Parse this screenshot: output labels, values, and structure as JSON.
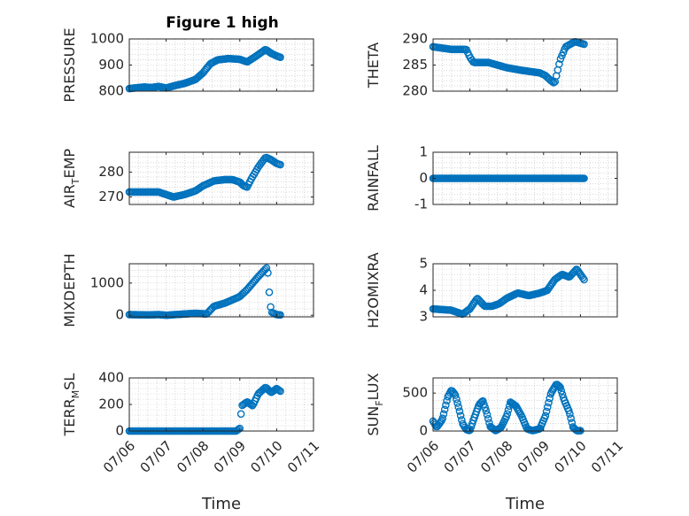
{
  "figure": {
    "title": "Figure 1 high",
    "marker_color": "#0072BD",
    "axis_color": "#262626",
    "grid_color": "#bfbfbf"
  },
  "chart_data": [
    {
      "type": "scatter",
      "id": "pressure",
      "ylabel": "PRESSURE",
      "ylabel_sub": "",
      "xlim": [
        0,
        5
      ],
      "ylim": [
        800,
        1000
      ],
      "yticks": [
        800,
        900,
        1000
      ],
      "xticks": [
        0,
        1,
        2,
        3,
        4,
        5
      ],
      "xticklabels": [],
      "knots": [
        [
          0,
          810
        ],
        [
          0.4,
          816
        ],
        [
          0.6,
          814
        ],
        [
          0.8,
          818
        ],
        [
          1.0,
          812
        ],
        [
          1.2,
          820
        ],
        [
          1.5,
          830
        ],
        [
          1.8,
          845
        ],
        [
          2.0,
          870
        ],
        [
          2.2,
          905
        ],
        [
          2.4,
          920
        ],
        [
          2.7,
          925
        ],
        [
          3.0,
          922
        ],
        [
          3.2,
          912
        ],
        [
          3.45,
          935
        ],
        [
          3.7,
          960
        ],
        [
          3.85,
          945
        ],
        [
          4.0,
          935
        ],
        [
          4.1,
          930
        ]
      ],
      "n": 120
    },
    {
      "type": "scatter",
      "id": "theta",
      "ylabel": "THETA",
      "ylabel_sub": "",
      "xlim": [
        0,
        5
      ],
      "ylim": [
        280,
        290
      ],
      "yticks": [
        280,
        285,
        290
      ],
      "xticks": [
        0,
        1,
        2,
        3,
        4,
        5
      ],
      "xticklabels": [],
      "knots": [
        [
          0,
          288.5
        ],
        [
          0.5,
          288
        ],
        [
          0.9,
          288
        ],
        [
          1.0,
          286.5
        ],
        [
          1.1,
          285.5
        ],
        [
          1.5,
          285.5
        ],
        [
          2.0,
          284.5
        ],
        [
          2.4,
          284
        ],
        [
          2.9,
          283.5
        ],
        [
          3.05,
          283
        ],
        [
          3.2,
          282
        ],
        [
          3.3,
          281.5
        ],
        [
          3.35,
          283
        ],
        [
          3.45,
          286
        ],
        [
          3.6,
          288.5
        ],
        [
          3.85,
          289.5
        ],
        [
          4.1,
          289
        ]
      ],
      "n": 110
    },
    {
      "type": "scatter",
      "id": "airtemp",
      "ylabel": "AIR",
      "ylabel_sub": "T",
      "ylabel_tail": "EMP",
      "xlim": [
        0,
        5
      ],
      "ylim": [
        267,
        288
      ],
      "yticks": [
        270,
        280
      ],
      "xticks": [
        0,
        1,
        2,
        3,
        4,
        5
      ],
      "xticklabels": [],
      "knots": [
        [
          0,
          272
        ],
        [
          0.8,
          272
        ],
        [
          1.0,
          271
        ],
        [
          1.2,
          270
        ],
        [
          1.5,
          271
        ],
        [
          1.8,
          272.5
        ],
        [
          2.0,
          274.5
        ],
        [
          2.3,
          276.5
        ],
        [
          2.6,
          277
        ],
        [
          2.8,
          277
        ],
        [
          3.0,
          276
        ],
        [
          3.1,
          274.5
        ],
        [
          3.2,
          274
        ],
        [
          3.3,
          277
        ],
        [
          3.5,
          282
        ],
        [
          3.7,
          286
        ],
        [
          3.85,
          285
        ],
        [
          4.0,
          283.5
        ],
        [
          4.1,
          283
        ]
      ],
      "n": 110
    },
    {
      "type": "scatter",
      "id": "rainfall",
      "ylabel": "RAINFALL",
      "ylabel_sub": "",
      "xlim": [
        0,
        5
      ],
      "ylim": [
        -1,
        1
      ],
      "yticks": [
        -1,
        0,
        1
      ],
      "xticks": [
        0,
        1,
        2,
        3,
        4,
        5
      ],
      "xticklabels": [],
      "knots": [
        [
          0,
          0
        ],
        [
          4.1,
          0
        ]
      ],
      "n": 140
    },
    {
      "type": "scatter",
      "id": "mixdepth",
      "ylabel": "MIXDEPTH",
      "ylabel_sub": "",
      "xlim": [
        0,
        5
      ],
      "ylim": [
        -50,
        1600
      ],
      "yticks": [
        0,
        1000
      ],
      "xticks": [
        0,
        1,
        2,
        3,
        4,
        5
      ],
      "xticklabels": [],
      "knots": [
        [
          0,
          20
        ],
        [
          0.5,
          10
        ],
        [
          0.8,
          20
        ],
        [
          1.0,
          0
        ],
        [
          1.5,
          40
        ],
        [
          1.8,
          60
        ],
        [
          2.1,
          40
        ],
        [
          2.3,
          280
        ],
        [
          2.6,
          380
        ],
        [
          3.0,
          580
        ],
        [
          3.2,
          800
        ],
        [
          3.5,
          1200
        ],
        [
          3.75,
          1500
        ],
        [
          3.8,
          700
        ],
        [
          3.85,
          100
        ],
        [
          4.0,
          20
        ],
        [
          4.1,
          10
        ]
      ],
      "n": 110
    },
    {
      "type": "scatter",
      "id": "h2omixra",
      "ylabel": "H2OMIXRA",
      "ylabel_sub": "",
      "xlim": [
        0,
        5
      ],
      "ylim": [
        3,
        5
      ],
      "yticks": [
        3,
        4,
        5
      ],
      "xticks": [
        0,
        1,
        2,
        3,
        4,
        5
      ],
      "xticklabels": [],
      "knots": [
        [
          0,
          3.3
        ],
        [
          0.5,
          3.25
        ],
        [
          0.8,
          3.1
        ],
        [
          1.0,
          3.3
        ],
        [
          1.2,
          3.7
        ],
        [
          1.4,
          3.4
        ],
        [
          1.6,
          3.4
        ],
        [
          1.8,
          3.5
        ],
        [
          2.0,
          3.7
        ],
        [
          2.3,
          3.9
        ],
        [
          2.6,
          3.8
        ],
        [
          2.9,
          3.9
        ],
        [
          3.1,
          4.0
        ],
        [
          3.3,
          4.4
        ],
        [
          3.5,
          4.6
        ],
        [
          3.7,
          4.5
        ],
        [
          3.9,
          4.8
        ],
        [
          4.1,
          4.4
        ]
      ],
      "n": 120
    },
    {
      "type": "scatter",
      "id": "terrmsl",
      "ylabel": "TERR",
      "ylabel_sub": "M",
      "ylabel_tail": "SL",
      "xlim": [
        0,
        5
      ],
      "ylim": [
        0,
        400
      ],
      "yticks": [
        0,
        200,
        400
      ],
      "xticks": [
        0,
        1,
        2,
        3,
        4,
        5
      ],
      "xticklabels": [
        "07/06",
        "07/07",
        "07/08",
        "07/09",
        "07/10",
        "07/11"
      ],
      "xlabel": "Time",
      "knots": [
        [
          0,
          0
        ],
        [
          2.9,
          0
        ],
        [
          3.0,
          20
        ],
        [
          3.05,
          190
        ],
        [
          3.2,
          220
        ],
        [
          3.35,
          190
        ],
        [
          3.5,
          280
        ],
        [
          3.7,
          330
        ],
        [
          3.85,
          290
        ],
        [
          4.0,
          320
        ],
        [
          4.1,
          300
        ]
      ],
      "n": 120
    },
    {
      "type": "scatter",
      "id": "sunflux",
      "ylabel": "SUN",
      "ylabel_sub": "F",
      "ylabel_tail": "LUX",
      "xlim": [
        0,
        5
      ],
      "ylim": [
        0,
        700
      ],
      "yticks": [
        0,
        500
      ],
      "xticks": [
        0,
        1,
        2,
        3,
        4,
        5
      ],
      "xticklabels": [
        "07/06",
        "07/07",
        "07/08",
        "07/09",
        "07/10",
        "07/11"
      ],
      "xlabel": "Time",
      "knots": [
        [
          0,
          130
        ],
        [
          0.1,
          50
        ],
        [
          0.25,
          150
        ],
        [
          0.4,
          450
        ],
        [
          0.5,
          540
        ],
        [
          0.6,
          480
        ],
        [
          0.7,
          300
        ],
        [
          0.8,
          100
        ],
        [
          0.9,
          20
        ],
        [
          1.0,
          5
        ],
        [
          1.1,
          150
        ],
        [
          1.25,
          350
        ],
        [
          1.35,
          400
        ],
        [
          1.45,
          250
        ],
        [
          1.55,
          60
        ],
        [
          1.7,
          5
        ],
        [
          1.85,
          50
        ],
        [
          2.0,
          200
        ],
        [
          2.1,
          380
        ],
        [
          2.25,
          330
        ],
        [
          2.4,
          200
        ],
        [
          2.55,
          30
        ],
        [
          2.7,
          5
        ],
        [
          2.9,
          30
        ],
        [
          3.05,
          200
        ],
        [
          3.2,
          500
        ],
        [
          3.35,
          620
        ],
        [
          3.45,
          580
        ],
        [
          3.55,
          420
        ],
        [
          3.7,
          250
        ],
        [
          3.8,
          50
        ],
        [
          3.9,
          5
        ],
        [
          4.0,
          5
        ]
      ],
      "n": 140
    }
  ]
}
